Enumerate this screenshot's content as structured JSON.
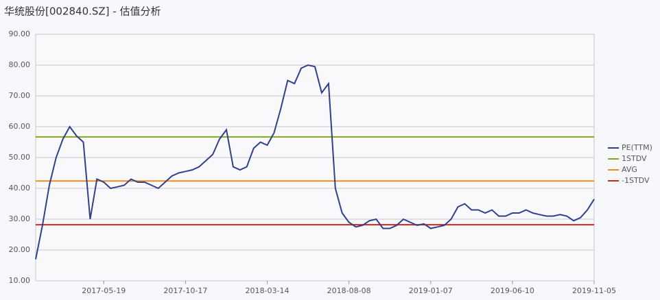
{
  "chart_data": {
    "type": "line",
    "title": "华统股份[002840.SZ] - 估值分析",
    "categories": [
      null,
      null,
      null,
      null,
      null,
      null,
      null,
      null,
      null,
      null,
      "2017-05-19",
      null,
      null,
      null,
      null,
      null,
      null,
      null,
      null,
      null,
      null,
      null,
      "2017-10-17",
      null,
      null,
      null,
      null,
      null,
      null,
      null,
      null,
      null,
      null,
      null,
      "2018-03-14",
      null,
      null,
      null,
      null,
      null,
      null,
      null,
      null,
      null,
      null,
      null,
      "2018-08-08",
      null,
      null,
      null,
      null,
      null,
      null,
      null,
      null,
      null,
      null,
      null,
      "2019-01-07",
      null,
      null,
      null,
      null,
      null,
      null,
      null,
      null,
      null,
      null,
      null,
      "2019-06-10",
      null,
      null,
      null,
      null,
      null,
      null,
      null,
      null,
      null,
      null,
      null,
      "2019-11-05"
    ],
    "series": [
      {
        "name": "PE(TTM)",
        "color": "#2f3f8c",
        "values": [
          17,
          28,
          41,
          50,
          56,
          60,
          57,
          55,
          30,
          43,
          42,
          40,
          40.5,
          41,
          43,
          42,
          42,
          41,
          40,
          42,
          44,
          45,
          45.5,
          46,
          47,
          49,
          51,
          56,
          59,
          47,
          46,
          47,
          53,
          55,
          54,
          58,
          66,
          75,
          74,
          79,
          80,
          79.5,
          71,
          74,
          40,
          32,
          29,
          27.5,
          28,
          29.5,
          30,
          27,
          27,
          28,
          30,
          29,
          28,
          28.5,
          27,
          27.5,
          28,
          30,
          34,
          35,
          33,
          33,
          32,
          33,
          31,
          31,
          32,
          32,
          33,
          32,
          31.5,
          31,
          31,
          31.5,
          31,
          29.5,
          30.5,
          33,
          36.5
        ]
      }
    ],
    "reference_lines": [
      {
        "name": "1STDV",
        "color": "#7fa81e",
        "value": 56.7
      },
      {
        "name": "AVG",
        "color": "#f08a24",
        "value": 42.4
      },
      {
        "name": "-1STDV",
        "color": "#c8281e",
        "value": 28.2
      }
    ],
    "ylim": [
      10,
      90
    ],
    "yticks": [
      {
        "value": 10,
        "label": "10.00"
      },
      {
        "value": 20,
        "label": "20.00"
      },
      {
        "value": 30,
        "label": "30.00"
      },
      {
        "value": 40,
        "label": "40.00"
      },
      {
        "value": 50,
        "label": "50.00"
      },
      {
        "value": 60,
        "label": "60.00"
      },
      {
        "value": 70,
        "label": "70.00"
      },
      {
        "value": 80,
        "label": "80.00"
      },
      {
        "value": 90,
        "label": "90.00"
      }
    ],
    "grid": true,
    "legend": "right"
  }
}
